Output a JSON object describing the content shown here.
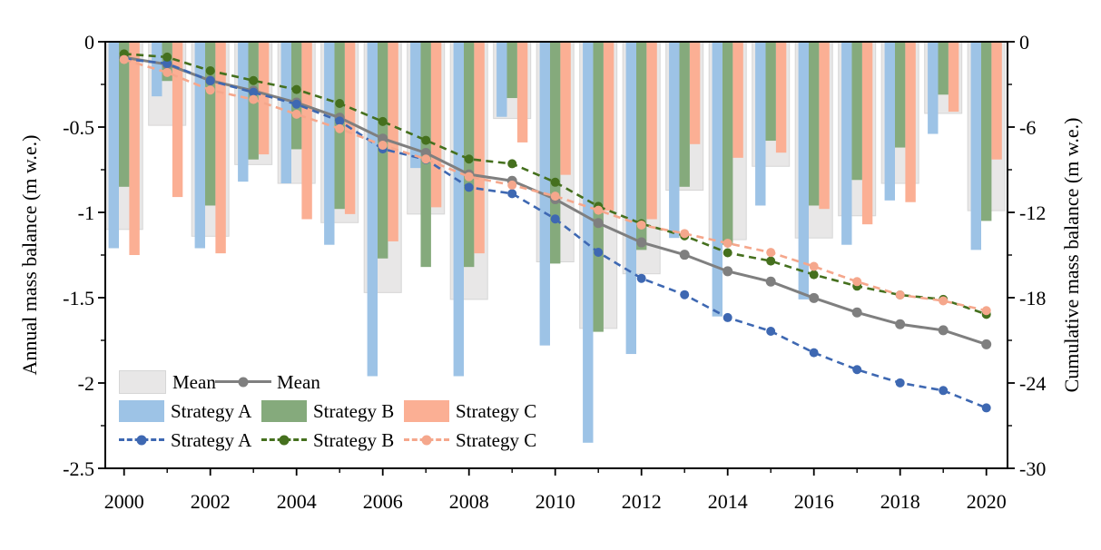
{
  "chart_data": {
    "type": "bar+line",
    "title": "",
    "years": [
      2000,
      2001,
      2002,
      2003,
      2004,
      2005,
      2006,
      2007,
      2008,
      2009,
      2010,
      2011,
      2012,
      2013,
      2014,
      2015,
      2016,
      2017,
      2018,
      2019,
      2020
    ],
    "x_axis": {
      "major_tick_years": [
        2000,
        2002,
        2004,
        2006,
        2008,
        2010,
        2012,
        2014,
        2016,
        2018,
        2020
      ],
      "tick_labels": [
        "2000",
        "2002",
        "2004",
        "2006",
        "2008",
        "2010",
        "2012",
        "2014",
        "2016",
        "2018",
        "2020"
      ],
      "minor_tick_years": [
        2001,
        2003,
        2005,
        2007,
        2009,
        2011,
        2013,
        2015,
        2017,
        2019
      ]
    },
    "left_axis": {
      "label": "Annual mass balance (m w.e.)",
      "range": [
        0,
        -2.5
      ],
      "major_ticks": [
        0,
        -0.5,
        -1,
        -1.5,
        -2,
        -2.5
      ],
      "tick_labels": [
        "0",
        "-0.5",
        "-1",
        "-1.5",
        "-2",
        "-2.5"
      ],
      "minor_step": 0.25
    },
    "right_axis": {
      "label": "Cumulative mass balance (m w.e.)",
      "range": [
        0,
        -30
      ],
      "major_ticks": [
        0,
        -6,
        -12,
        -18,
        -24,
        -30
      ],
      "tick_labels": [
        "0",
        "-6",
        "-12",
        "-18",
        "-24",
        "-30"
      ],
      "minor_step": 3
    },
    "bar_series": [
      {
        "name": "Mean",
        "color": "#e8e7e7",
        "border": "#d6d6d6",
        "values": [
          -1.1,
          -0.49,
          -1.14,
          -0.72,
          -0.83,
          -1.06,
          -1.47,
          -1.01,
          -1.51,
          -0.45,
          -1.29,
          -1.68,
          -1.36,
          -0.87,
          -1.16,
          -0.73,
          -1.15,
          -1.02,
          -0.83,
          -0.42,
          -0.99
        ]
      },
      {
        "name": "Strategy A",
        "color": "#9dc3e6",
        "values": [
          -1.21,
          -0.32,
          -1.21,
          -0.82,
          -0.83,
          -1.19,
          -1.96,
          -0.74,
          -1.96,
          -0.44,
          -1.78,
          -2.35,
          -1.83,
          -1.15,
          -1.61,
          -0.96,
          -1.51,
          -1.19,
          -0.93,
          -0.54,
          -1.22
        ]
      },
      {
        "name": "Strategy B",
        "color": "#85aa7c",
        "values": [
          -0.85,
          -0.23,
          -0.96,
          -0.69,
          -0.63,
          -0.98,
          -1.27,
          -1.32,
          -1.32,
          -0.33,
          -1.3,
          -1.7,
          -1.22,
          -0.85,
          -1.19,
          -0.58,
          -0.96,
          -0.81,
          -0.62,
          -0.31,
          -1.05
        ]
      },
      {
        "name": "Strategy C",
        "color": "#fbaf94",
        "values": [
          -1.25,
          -0.91,
          -1.24,
          -0.66,
          -1.04,
          -1.01,
          -1.17,
          -0.97,
          -1.24,
          -0.59,
          -0.78,
          -0.99,
          -1.04,
          -0.6,
          -0.68,
          -0.65,
          -0.98,
          -1.07,
          -0.94,
          -0.41,
          -0.69
        ]
      }
    ],
    "line_series": [
      {
        "name": "Mean",
        "color": "#7f7f7f",
        "dash": "solid",
        "marker_r": 5.5,
        "values": [
          -1.1,
          -1.59,
          -2.73,
          -3.45,
          -4.28,
          -5.34,
          -6.81,
          -7.82,
          -9.33,
          -9.78,
          -11.07,
          -12.75,
          -14.11,
          -14.98,
          -16.14,
          -16.87,
          -18.02,
          -19.04,
          -19.87,
          -20.29,
          -21.28
        ]
      },
      {
        "name": "Strategy A",
        "color": "#3e68b2",
        "dash": "dashed",
        "marker_r": 5,
        "values": [
          -1.21,
          -1.53,
          -2.74,
          -3.56,
          -4.39,
          -5.58,
          -7.54,
          -8.28,
          -10.24,
          -10.68,
          -12.46,
          -14.81,
          -16.64,
          -17.79,
          -19.4,
          -20.36,
          -21.87,
          -23.06,
          -23.99,
          -24.53,
          -25.75
        ]
      },
      {
        "name": "Strategy B",
        "color": "#45701e",
        "dash": "dashed",
        "marker_r": 5,
        "values": [
          -0.85,
          -1.08,
          -2.04,
          -2.73,
          -3.36,
          -4.34,
          -5.61,
          -6.93,
          -8.25,
          -8.58,
          -9.88,
          -11.58,
          -12.8,
          -13.65,
          -14.84,
          -15.42,
          -16.38,
          -17.19,
          -17.81,
          -18.12,
          -19.17
        ]
      },
      {
        "name": "Strategy C",
        "color": "#f5a78c",
        "dash": "dashed",
        "marker_r": 5,
        "values": [
          -1.25,
          -2.16,
          -3.4,
          -4.06,
          -5.1,
          -6.11,
          -7.28,
          -8.25,
          -9.49,
          -10.08,
          -10.86,
          -11.85,
          -12.89,
          -13.49,
          -14.17,
          -14.82,
          -15.8,
          -16.87,
          -17.81,
          -18.22,
          -18.91
        ]
      }
    ],
    "legend": {
      "mean_bar_label": "Mean",
      "mean_line_label": "Mean",
      "bar_a_label": "Strategy A",
      "bar_b_label": "Strategy B",
      "bar_c_label": "Strategy C",
      "line_a_label": "Strategy A",
      "line_b_label": "Strategy B",
      "line_c_label": "Strategy C"
    },
    "colors": {
      "axis": "#000000",
      "bar_mean": "#e8e7e7",
      "bar_a": "#9dc3e6",
      "bar_b": "#85aa7c",
      "bar_c": "#fbaf94",
      "line_mean": "#7f7f7f",
      "line_a": "#3e68b2",
      "line_b": "#45701e",
      "line_c": "#f5a78c"
    }
  }
}
